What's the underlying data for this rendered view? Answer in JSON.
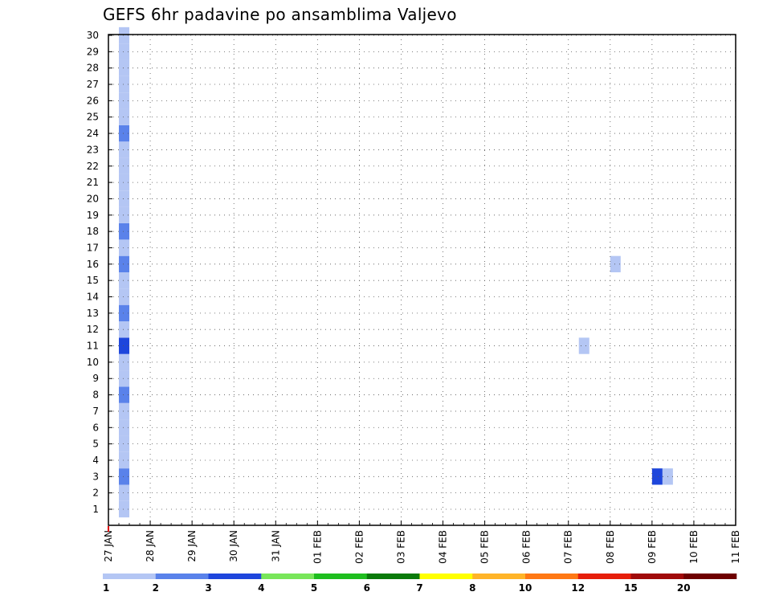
{
  "chart_data": {
    "type": "heatmap",
    "title": "GEFS 6hr padavine po ansamblima Valjevo",
    "x_tick_labels": [
      "27 JAN",
      "28 JAN",
      "29 JAN",
      "30 JAN",
      "31 JAN",
      "01 FEB",
      "02 FEB",
      "03 FEB",
      "04 FEB",
      "05 FEB",
      "06 FEB",
      "07 FEB",
      "08 FEB",
      "09 FEB",
      "10 FEB",
      "11 FEB"
    ],
    "y_tick_labels": [
      "1",
      "2",
      "3",
      "4",
      "5",
      "6",
      "7",
      "8",
      "9",
      "10",
      "11",
      "12",
      "13",
      "14",
      "15",
      "16",
      "17",
      "18",
      "19",
      "20",
      "21",
      "22",
      "23",
      "24",
      "25",
      "26",
      "27",
      "28",
      "29",
      "30"
    ],
    "x_unit": "6-hour step from 27 JAN 00Z",
    "y_range": [
      1,
      30
    ],
    "grid": true,
    "colorbar": {
      "levels": [
        "1",
        "2",
        "3",
        "4",
        "5",
        "6",
        "7",
        "8",
        "10",
        "12",
        "15",
        "20"
      ],
      "colors": [
        "#b4c6f4",
        "#5a82ea",
        "#1e46dc",
        "#78e65a",
        "#1ebe1e",
        "#0a7a0a",
        "#ffff00",
        "#ffb428",
        "#ff7814",
        "#e61e0a",
        "#a00a0a",
        "#6e0000"
      ]
    },
    "cells": [
      [
        1,
        1,
        0
      ],
      [
        1,
        2,
        0
      ],
      [
        1,
        3,
        1
      ],
      [
        1,
        4,
        0
      ],
      [
        1,
        5,
        0
      ],
      [
        1,
        6,
        0
      ],
      [
        1,
        7,
        0
      ],
      [
        1,
        8,
        1
      ],
      [
        1,
        9,
        0
      ],
      [
        1,
        10,
        0
      ],
      [
        1,
        11,
        2
      ],
      [
        1,
        12,
        0
      ],
      [
        1,
        13,
        1
      ],
      [
        1,
        14,
        0
      ],
      [
        1,
        15,
        0
      ],
      [
        1,
        16,
        1
      ],
      [
        1,
        17,
        0
      ],
      [
        1,
        18,
        1
      ],
      [
        1,
        19,
        0
      ],
      [
        1,
        20,
        0
      ],
      [
        1,
        21,
        0
      ],
      [
        1,
        22,
        0
      ],
      [
        1,
        23,
        0
      ],
      [
        1,
        24,
        1
      ],
      [
        1,
        25,
        0
      ],
      [
        1,
        26,
        0
      ],
      [
        1,
        27,
        0
      ],
      [
        1,
        28,
        0
      ],
      [
        1,
        29,
        0
      ],
      [
        1,
        30,
        0
      ],
      [
        73,
        29,
        0
      ],
      [
        90,
        29,
        1
      ],
      [
        85,
        30,
        7
      ],
      [
        83,
        26,
        3
      ],
      [
        84,
        26,
        2
      ],
      [
        84,
        25,
        0
      ],
      [
        85,
        25,
        0
      ],
      [
        86,
        25,
        6
      ],
      [
        87,
        25,
        10
      ],
      [
        88,
        25,
        11
      ],
      [
        89,
        25,
        9
      ],
      [
        90,
        25,
        9
      ],
      [
        91,
        25,
        5
      ],
      [
        92,
        25,
        4
      ],
      [
        93,
        25,
        1
      ],
      [
        67,
        24,
        2
      ],
      [
        68,
        24,
        0
      ],
      [
        70,
        24,
        0
      ],
      [
        72,
        24,
        0
      ],
      [
        100,
        24,
        3
      ],
      [
        88,
        23,
        3
      ],
      [
        91,
        21,
        1
      ],
      [
        95,
        20,
        5
      ],
      [
        96,
        20,
        3
      ],
      [
        96,
        19,
        1
      ],
      [
        103,
        19,
        0
      ],
      [
        104,
        19,
        0
      ],
      [
        73,
        18,
        1
      ],
      [
        86,
        18,
        2
      ],
      [
        87,
        18,
        1
      ],
      [
        88,
        18,
        0
      ],
      [
        98,
        17,
        2
      ],
      [
        48,
        16,
        0
      ],
      [
        73,
        15,
        0
      ],
      [
        74,
        15,
        3
      ],
      [
        75,
        15,
        0
      ],
      [
        76,
        15,
        0
      ],
      [
        77,
        15,
        0
      ],
      [
        78,
        15,
        0
      ],
      [
        79,
        15,
        1
      ],
      [
        80,
        15,
        1
      ],
      [
        84,
        15,
        1
      ],
      [
        85,
        15,
        2
      ],
      [
        86,
        15,
        1
      ],
      [
        87,
        15,
        0
      ],
      [
        100,
        14,
        0
      ],
      [
        65,
        13,
        0
      ],
      [
        66,
        13,
        3
      ],
      [
        67,
        13,
        5
      ],
      [
        68,
        13,
        5
      ],
      [
        69,
        13,
        1
      ],
      [
        88,
        13,
        1
      ],
      [
        89,
        13,
        2
      ],
      [
        90,
        13,
        2
      ],
      [
        91,
        13,
        1
      ],
      [
        95,
        13,
        6
      ],
      [
        96,
        13,
        8
      ],
      [
        103,
        13,
        0
      ],
      [
        84,
        12,
        0
      ],
      [
        85,
        12,
        0
      ],
      [
        45,
        11,
        0
      ],
      [
        85,
        11,
        0
      ],
      [
        91,
        9,
        2
      ],
      [
        96,
        9,
        1
      ],
      [
        97,
        9,
        2
      ],
      [
        88,
        8,
        1
      ],
      [
        89,
        8,
        1
      ],
      [
        90,
        8,
        1
      ],
      [
        91,
        8,
        1
      ],
      [
        92,
        8,
        2
      ],
      [
        93,
        8,
        1
      ],
      [
        71,
        7,
        0
      ],
      [
        94,
        7,
        3
      ],
      [
        96,
        5,
        0
      ],
      [
        70,
        5,
        0
      ],
      [
        71,
        5,
        5
      ],
      [
        91,
        5,
        2
      ],
      [
        92,
        5,
        0
      ],
      [
        97,
        5,
        3
      ],
      [
        98,
        5,
        3
      ],
      [
        99,
        5,
        1
      ],
      [
        100,
        5,
        3
      ],
      [
        101,
        5,
        4
      ],
      [
        70,
        4,
        0
      ],
      [
        71,
        4,
        1
      ],
      [
        73,
        4,
        0
      ],
      [
        96,
        4,
        1
      ],
      [
        52,
        3,
        2
      ],
      [
        53,
        3,
        0
      ],
      [
        65,
        3,
        3
      ],
      [
        93,
        3,
        0
      ],
      [
        94,
        3,
        1
      ],
      [
        68,
        2,
        1
      ],
      [
        84,
        2,
        7
      ],
      [
        85,
        2,
        7
      ],
      [
        86,
        2,
        6
      ],
      [
        87,
        2,
        5
      ],
      [
        88,
        2,
        6
      ],
      [
        89,
        2,
        4
      ],
      [
        90,
        2,
        3
      ],
      [
        91,
        2,
        1
      ],
      [
        92,
        2,
        1
      ],
      [
        93,
        2,
        1
      ],
      [
        94,
        2,
        1
      ],
      [
        95,
        2,
        1
      ],
      [
        96,
        2,
        1
      ],
      [
        97,
        2,
        1
      ],
      [
        98,
        2,
        0
      ],
      [
        99,
        2,
        1
      ],
      [
        100,
        2,
        1
      ],
      [
        101,
        2,
        1
      ],
      [
        102,
        2,
        3
      ],
      [
        72,
        1,
        0
      ],
      [
        73,
        1,
        2
      ],
      [
        74,
        1,
        0
      ],
      [
        75,
        1,
        0
      ],
      [
        76,
        1,
        0
      ],
      [
        79,
        1,
        0
      ]
    ]
  }
}
